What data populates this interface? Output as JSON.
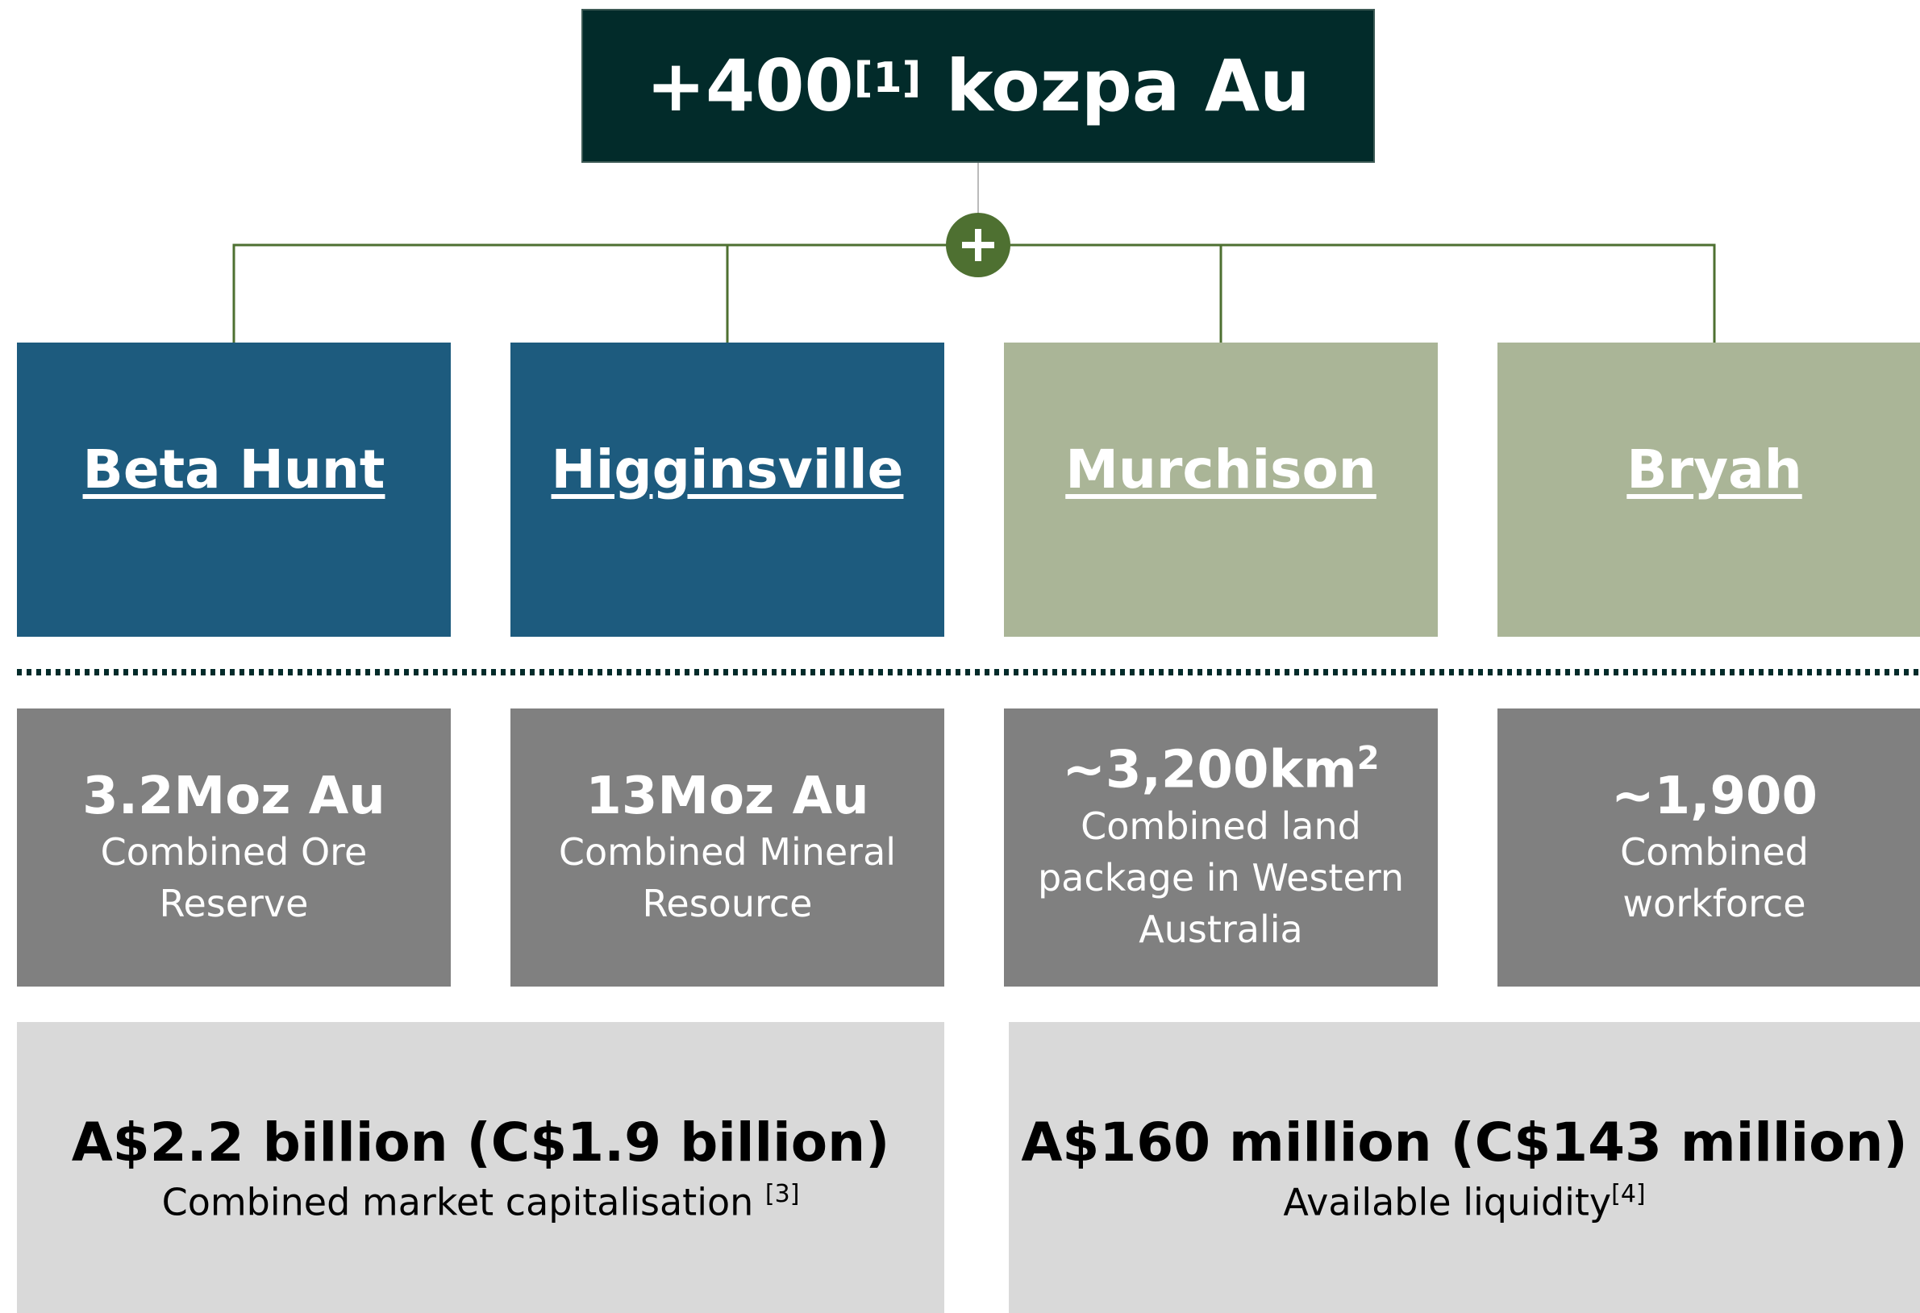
{
  "header": {
    "value": "+400",
    "note": "[1]",
    "unit": "kozpa Au"
  },
  "assets": [
    {
      "name": "Beta Hunt",
      "color": "#1d5b7e"
    },
    {
      "name": "Higginsville",
      "color": "#1d5b7e"
    },
    {
      "name": "Murchison",
      "color": "#aab597"
    },
    {
      "name": "Bryah",
      "color": "#aab597"
    }
  ],
  "stats": [
    {
      "value": "3.2Moz Au",
      "description": "Combined Ore Reserve"
    },
    {
      "value": "13Moz Au",
      "description": "Combined Mineral Resource"
    },
    {
      "value": "~3,200km",
      "sup": "2",
      "description": "Combined land package in Western Australia"
    },
    {
      "value": "~1,900",
      "description": "Combined workforce"
    }
  ],
  "totals": [
    {
      "value": "A$2.2 billion (C$1.9 billion)",
      "description": "Combined market capitalisation ",
      "note": "[3]"
    },
    {
      "value": "A$160 million (C$143 million)",
      "description": "Available liquidity",
      "note": "[4]"
    }
  ]
}
